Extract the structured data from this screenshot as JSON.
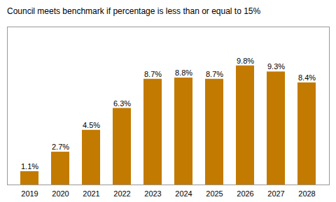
{
  "chart_data": {
    "type": "bar",
    "title": "Council meets benchmark if percentage is less than or equal to 15%",
    "categories": [
      "2019",
      "2020",
      "2021",
      "2022",
      "2023",
      "2024",
      "2025",
      "2026",
      "2027",
      "2028"
    ],
    "values": [
      1.1,
      2.7,
      4.5,
      6.3,
      8.7,
      8.8,
      8.7,
      9.8,
      9.3,
      8.4
    ],
    "value_labels": [
      "1.1%",
      "2.7%",
      "4.5%",
      "6.3%",
      "8.7%",
      "8.8%",
      "8.7%",
      "9.8%",
      "9.3%",
      "8.4%"
    ],
    "color": "#C27A00",
    "ylim": [
      0,
      13
    ],
    "data_labels": true,
    "tick_labels": "x",
    "grid": false
  }
}
